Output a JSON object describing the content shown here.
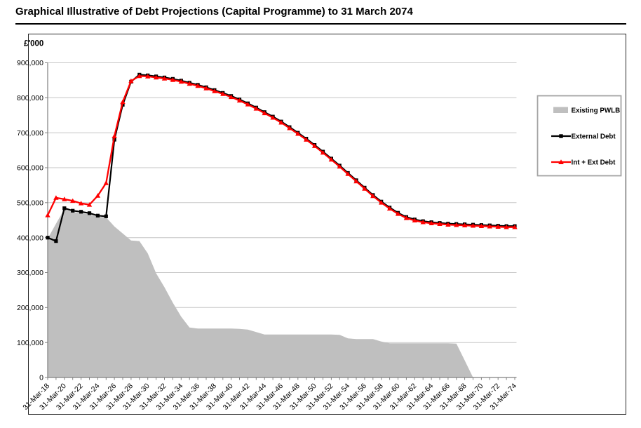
{
  "title": "Graphical Illustrative of Debt Projections (Capital Programme) to 31 March 2074",
  "colors": {
    "gridline": "#c6c6c6",
    "axis": "#808080",
    "frame_border": "#262626",
    "legend_border": "#a3a3a3",
    "existing_pwlb": "#bfbfbf",
    "external_debt": "#000000",
    "int_ext_debt": "#ff0000"
  },
  "chart_data": {
    "type": "line",
    "title": "Graphical Illustrative of Debt Projections (Capital Programme) to 31 March 2074",
    "y_axis_title": "£'000",
    "ylim": [
      0,
      900000
    ],
    "y_gridline_step": 100000,
    "grid": true,
    "legend_position": "right",
    "y_tick_labels": [
      "0",
      "100,000",
      "200,000",
      "300,000",
      "400,000",
      "500,000",
      "600,000",
      "700,000",
      "800,000",
      "900,000"
    ],
    "x_tick_labels": [
      "31-Mar-18",
      "31-Mar-20",
      "31-Mar-22",
      "31-Mar-24",
      "31-Mar-26",
      "31-Mar-28",
      "31-Mar-30",
      "31-Mar-32",
      "31-Mar-34",
      "31-Mar-36",
      "31-Mar-38",
      "31-Mar-40",
      "31-Mar-42",
      "31-Mar-44",
      "31-Mar-46",
      "31-Mar-48",
      "31-Mar-50",
      "31-Mar-52",
      "31-Mar-54",
      "31-Mar-56",
      "31-Mar-58",
      "31-Mar-60",
      "31-Mar-62",
      "31-Mar-64",
      "31-Mar-66",
      "31-Mar-68",
      "31-Mar-70",
      "31-Mar-72",
      "31-Mar-74"
    ],
    "x_start_year": 2018,
    "x_end_year": 2074,
    "x_points_interval_years": 1,
    "series": [
      {
        "name": "Existing PWLB",
        "type": "area",
        "color": "#bfbfbf",
        "values": [
          397000,
          440000,
          481000,
          473000,
          470000,
          466000,
          460000,
          458000,
          432000,
          412000,
          392000,
          390000,
          355000,
          298000,
          258000,
          214000,
          174000,
          143000,
          140000,
          140000,
          140000,
          140000,
          140000,
          139000,
          137000,
          130000,
          123000,
          123000,
          123000,
          123000,
          123000,
          123000,
          123000,
          123000,
          123000,
          122000,
          112000,
          110000,
          110000,
          110000,
          103000,
          98000,
          98000,
          98000,
          98000,
          98000,
          98000,
          98000,
          98000,
          97000,
          49000,
          0,
          0,
          0,
          0,
          0,
          0
        ]
      },
      {
        "name": "External Debt",
        "type": "line",
        "marker": "square",
        "color": "#000000",
        "values": [
          400000,
          390000,
          484000,
          477000,
          474000,
          470000,
          463000,
          461000,
          680000,
          780000,
          846000,
          866000,
          864000,
          861000,
          858000,
          854000,
          849000,
          843000,
          837000,
          830000,
          822000,
          814000,
          805000,
          795000,
          784000,
          772000,
          759000,
          746000,
          732000,
          716000,
          700000,
          683000,
          665000,
          646000,
          626000,
          606000,
          585000,
          564000,
          543000,
          522000,
          503000,
          486000,
          471000,
          459000,
          452000,
          447000,
          444000,
          442000,
          440000,
          439000,
          438000,
          437000,
          436000,
          435000,
          434000,
          433000,
          433000
        ]
      },
      {
        "name": "Int + Ext Debt",
        "type": "line",
        "marker": "triangle",
        "color": "#ff0000",
        "values": [
          464000,
          514000,
          510000,
          505000,
          498000,
          494000,
          520000,
          556000,
          690000,
          788000,
          848000,
          862000,
          861000,
          858000,
          855000,
          851000,
          846000,
          840000,
          834000,
          827000,
          819000,
          811000,
          802000,
          792000,
          781000,
          769000,
          756000,
          743000,
          729000,
          713000,
          697000,
          680000,
          662000,
          643000,
          623000,
          603000,
          582000,
          561000,
          540000,
          519000,
          500000,
          483000,
          468000,
          456000,
          449000,
          444000,
          441000,
          439000,
          437000,
          436000,
          435000,
          434000,
          433000,
          432000,
          431000,
          430000,
          430000
        ]
      }
    ]
  }
}
